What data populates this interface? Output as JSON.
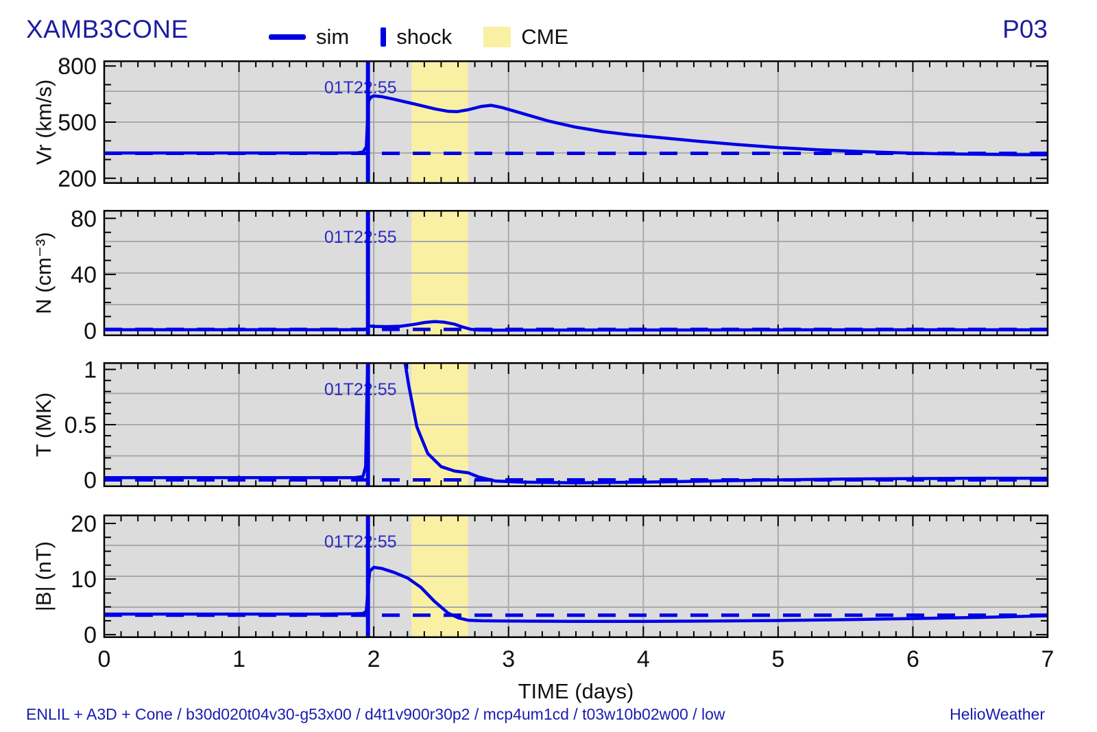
{
  "header": {
    "title": "XAMB3CONE",
    "run_id": "P03",
    "legend": [
      {
        "label": "sim",
        "swatch": "line-swatch"
      },
      {
        "label": "shock",
        "swatch": "vbar-swatch"
      },
      {
        "label": "CME",
        "swatch": "box-swatch"
      }
    ]
  },
  "footer": {
    "model_info": "ENLIL + A3D + Cone / b30d020t04v30-g53x00 / d4t1v900r30p2 / mcp4um1cd / t03w10b02w00 / low",
    "credit": "HelioWeather"
  },
  "colors": {
    "sim_line": "#0000e6",
    "shock_line": "#0000e6",
    "dashed_line": "#0000e6",
    "annotation": "#2b2bc4",
    "title_text": "#1c1c9e",
    "caption_text": "#1b1bb0",
    "panel_bg": "#dcdcdc",
    "grid": "#a9a9a9",
    "cme_fill": "#faf0a4",
    "frame": "#000000"
  },
  "time_axis": {
    "label": "TIME (days)",
    "min": 0,
    "max": 7,
    "major_ticks": [
      0,
      1,
      2,
      3,
      4,
      5,
      6,
      7
    ],
    "minor_per_day": 8
  },
  "shock": {
    "time_days": 1.957,
    "label": "01T22:55"
  },
  "cme": {
    "start_days": 2.28,
    "end_days": 2.7
  },
  "chart_data": [
    {
      "type": "line",
      "name": "radial-velocity",
      "ylabel": "Vr (km/s)",
      "yrange": [
        170,
        830
      ],
      "major_ticks": [
        {
          "v": 200,
          "label": "200"
        },
        {
          "v": 500,
          "label": "500"
        },
        {
          "v": 800,
          "label": "800"
        }
      ],
      "minor_step": 100,
      "ambient_dashed_value": 333,
      "series": {
        "x": [
          0,
          0.3,
          0.6,
          0.9,
          1.2,
          1.5,
          1.8,
          1.88,
          1.92,
          1.945,
          1.953,
          1.962,
          1.98,
          2.0,
          2.06,
          2.15,
          2.3,
          2.45,
          2.55,
          2.62,
          2.7,
          2.8,
          2.87,
          2.95,
          3.1,
          3.3,
          3.5,
          3.7,
          3.9,
          4.1,
          4.4,
          4.7,
          5.0,
          5.3,
          5.6,
          5.9,
          6.2,
          6.5,
          6.8,
          7.0
        ],
        "y": [
          335,
          335,
          335,
          335,
          335,
          335,
          335,
          336,
          340,
          368,
          500,
          615,
          634,
          640,
          636,
          622,
          597,
          571,
          558,
          556,
          566,
          584,
          590,
          578,
          547,
          505,
          473,
          449,
          432,
          419,
          398,
          380,
          364,
          352,
          343,
          336,
          331,
          328,
          326,
          325
        ]
      }
    },
    {
      "type": "line",
      "name": "density",
      "ylabel": "N (cm⁻³)",
      "yrange": [
        -4,
        86
      ],
      "major_ticks": [
        {
          "v": 0,
          "label": "0"
        },
        {
          "v": 40,
          "label": "40"
        },
        {
          "v": 80,
          "label": "80"
        }
      ],
      "minor_step": 10,
      "ambient_dashed_value": 0.8,
      "series": {
        "x": [
          0,
          0.4,
          0.8,
          1.2,
          1.6,
          1.85,
          1.93,
          1.948,
          1.958,
          1.97,
          2.0,
          2.1,
          2.2,
          2.3,
          2.38,
          2.45,
          2.52,
          2.6,
          2.66,
          2.72,
          2.78,
          2.85,
          3.0,
          3.3,
          3.7,
          4.2,
          4.7,
          5.2,
          5.7,
          6.2,
          6.6,
          7.0
        ],
        "y": [
          0.6,
          0.6,
          0.6,
          0.6,
          0.6,
          0.6,
          0.65,
          1.2,
          3.4,
          3.2,
          3.0,
          2.8,
          3.1,
          4.4,
          5.8,
          6.4,
          6.0,
          4.5,
          2.5,
          0.9,
          0.35,
          0.25,
          0.3,
          0.35,
          0.4,
          0.42,
          0.45,
          0.48,
          0.5,
          0.52,
          0.53,
          0.55
        ]
      }
    },
    {
      "type": "line",
      "name": "temperature",
      "ylabel": "T (MK)",
      "yrange": [
        -0.065,
        1.065
      ],
      "major_ticks": [
        {
          "v": 0,
          "label": "0"
        },
        {
          "v": 0.5,
          "label": "0.5"
        },
        {
          "v": 1,
          "label": "1"
        }
      ],
      "minor_step": 0.1,
      "ambient_dashed_value": 0,
      "series": {
        "x": [
          0,
          0.4,
          0.8,
          1.2,
          1.6,
          1.85,
          1.92,
          1.94,
          1.95,
          1.96,
          2.0,
          2.1,
          2.2,
          2.26,
          2.32,
          2.4,
          2.5,
          2.6,
          2.7,
          2.78,
          2.9,
          3.1,
          3.5,
          4.0,
          4.5,
          5.0,
          5.5,
          6.0,
          6.5,
          7.0
        ],
        "y": [
          0.02,
          0.02,
          0.02,
          0.02,
          0.02,
          0.02,
          0.03,
          0.12,
          0.8,
          1.3,
          1.42,
          1.45,
          1.3,
          0.85,
          0.48,
          0.24,
          0.12,
          0.08,
          0.065,
          0.025,
          -0.01,
          -0.02,
          -0.026,
          -0.02,
          -0.01,
          0.0,
          0.008,
          0.012,
          0.015,
          0.015
        ]
      }
    },
    {
      "type": "line",
      "name": "magnetic-field",
      "ylabel": "|B| (nT)",
      "yrange": [
        -0.6,
        21.6
      ],
      "major_ticks": [
        {
          "v": 0,
          "label": "0"
        },
        {
          "v": 10,
          "label": "10"
        },
        {
          "v": 20,
          "label": "20"
        }
      ],
      "minor_step": 2.5,
      "ambient_dashed_value": 3.5,
      "series": {
        "x": [
          0,
          0.4,
          0.8,
          1.2,
          1.6,
          1.85,
          1.92,
          1.945,
          1.958,
          1.97,
          2.0,
          2.06,
          2.15,
          2.25,
          2.35,
          2.45,
          2.55,
          2.63,
          2.7,
          2.8,
          3.0,
          3.5,
          4.0,
          4.5,
          5.0,
          5.5,
          6.0,
          6.5,
          7.0
        ],
        "y": [
          3.7,
          3.7,
          3.7,
          3.7,
          3.7,
          3.75,
          3.8,
          4.2,
          8.5,
          11.4,
          12.1,
          11.9,
          11.2,
          10.2,
          8.5,
          6.0,
          3.9,
          3.0,
          2.6,
          2.5,
          2.45,
          2.4,
          2.4,
          2.45,
          2.55,
          2.7,
          2.9,
          3.1,
          3.4
        ]
      }
    }
  ]
}
